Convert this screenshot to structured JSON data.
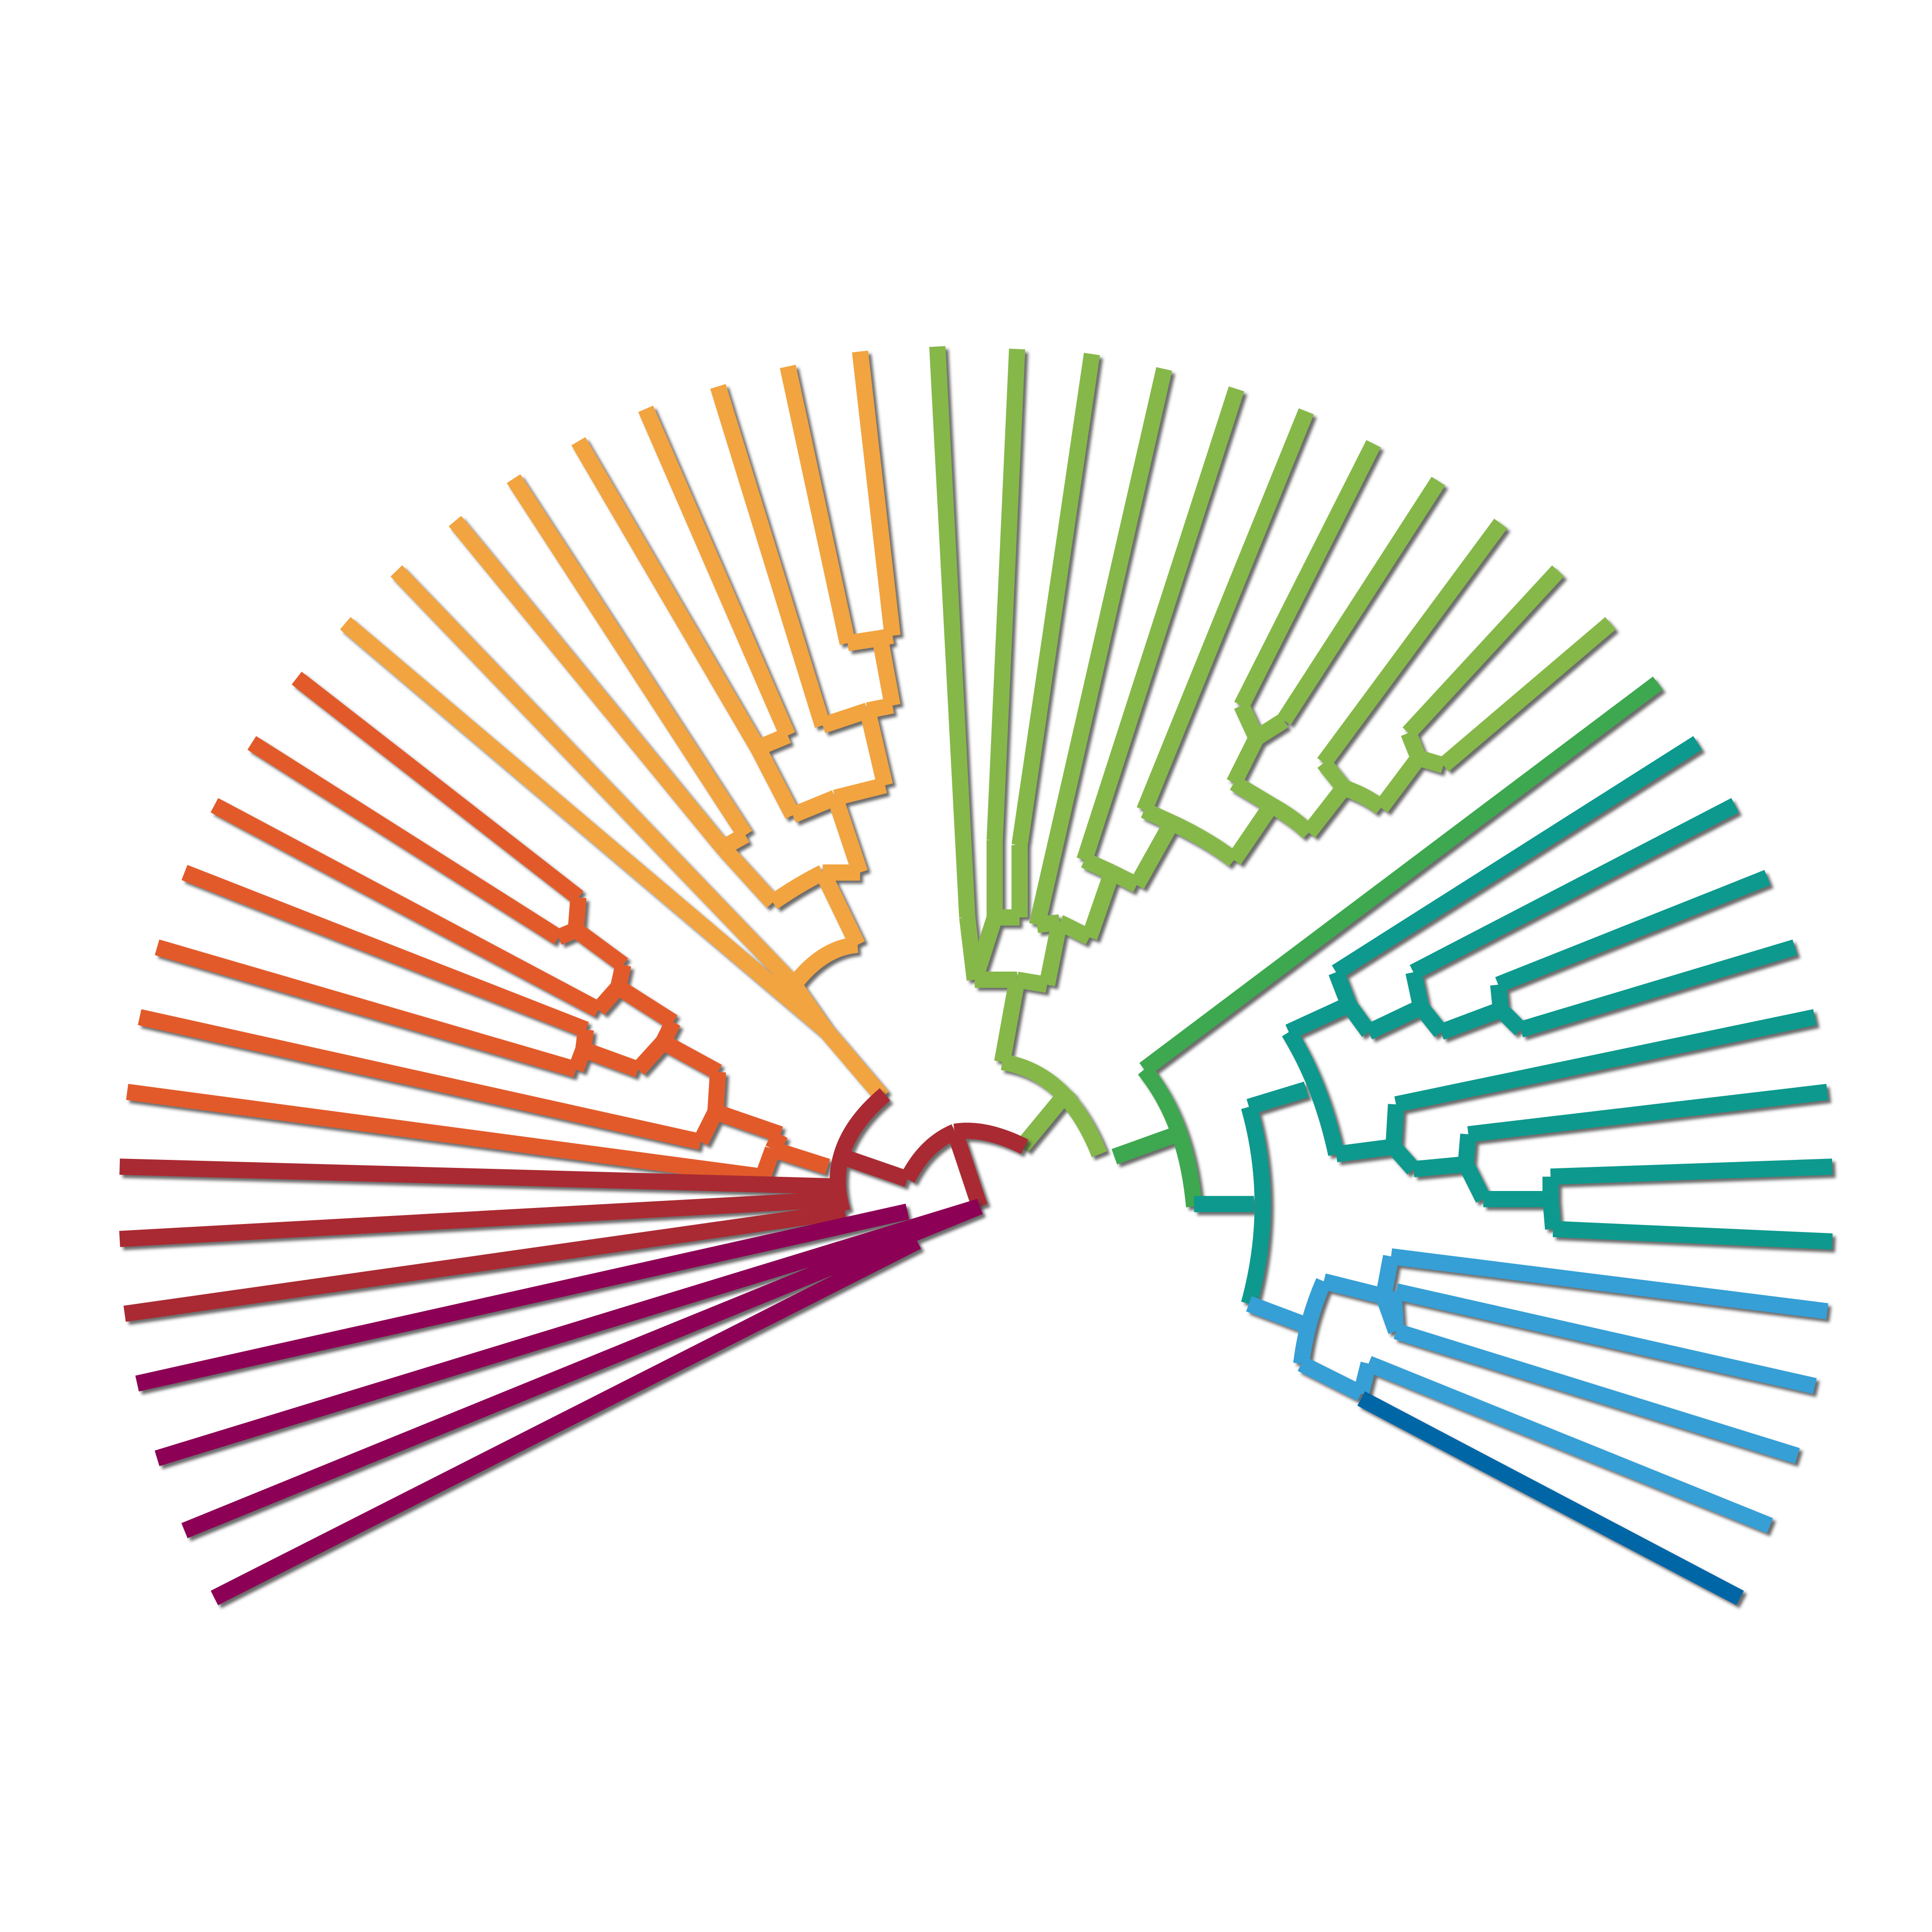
{
  "diagram": {
    "kind": "radial-dendrogram",
    "background": "#ffffff",
    "shadow_color": "#3a3a3a",
    "clades": [
      {
        "name": "burgundy",
        "color": "#a92c33",
        "leaf_count": 3
      },
      {
        "name": "magenta",
        "color": "#8c0055",
        "leaf_count": 4
      },
      {
        "name": "orange",
        "color": "#e35a2c",
        "leaf_count": 8
      },
      {
        "name": "light-orange",
        "color": "#f2a440",
        "leaf_count": 8
      },
      {
        "name": "yellow-green",
        "color": "#86b84a",
        "leaf_count": 10
      },
      {
        "name": "green",
        "color": "#3da84f",
        "leaf_count": 1
      },
      {
        "name": "teal",
        "color": "#07998d",
        "leaf_count": 8
      },
      {
        "name": "sky-blue",
        "color": "#349fd6",
        "leaf_count": 4
      },
      {
        "name": "dark-blue",
        "color": "#0166a6",
        "leaf_count": 1
      }
    ],
    "clade_order_left_to_right": [
      "magenta",
      "burgundy",
      "orange",
      "light-orange",
      "yellow-green",
      "green",
      "teal",
      "sky-blue",
      "dark-blue"
    ]
  }
}
